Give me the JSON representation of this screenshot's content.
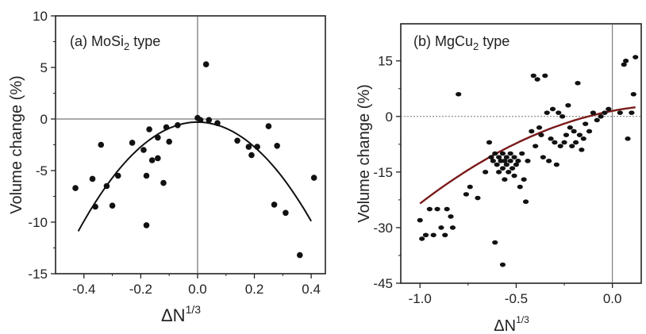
{
  "chart_data": [
    {
      "type": "scatter",
      "panel_label": "(a) MoSi",
      "panel_label_sub": "2",
      "panel_label_suffix": " type",
      "xlabel": "ΔN",
      "xlabel_sup": "1/3",
      "ylabel": "Volume change (%)",
      "xlim": [
        -0.5,
        0.45
      ],
      "ylim": [
        -15,
        10
      ],
      "xticks": [
        -0.4,
        -0.2,
        0.0,
        0.2,
        0.4
      ],
      "xtick_labels": [
        "-0.4",
        "-0.2",
        "0.0",
        "0.2",
        "0.4"
      ],
      "yticks": [
        -15,
        -10,
        -5,
        0,
        5,
        10
      ],
      "ytick_labels": [
        "-15",
        "-10",
        "-5",
        "0",
        "5",
        "10"
      ],
      "points": [
        {
          "x": -0.43,
          "y": -6.7
        },
        {
          "x": -0.37,
          "y": -5.8
        },
        {
          "x": -0.36,
          "y": -8.5
        },
        {
          "x": -0.34,
          "y": -2.5
        },
        {
          "x": -0.32,
          "y": -6.5
        },
        {
          "x": -0.3,
          "y": -8.4
        },
        {
          "x": -0.28,
          "y": -5.5
        },
        {
          "x": -0.23,
          "y": -2.3
        },
        {
          "x": -0.19,
          "y": -3.0
        },
        {
          "x": -0.18,
          "y": -5.5
        },
        {
          "x": -0.18,
          "y": -10.3
        },
        {
          "x": -0.17,
          "y": -1.0
        },
        {
          "x": -0.16,
          "y": -4.0
        },
        {
          "x": -0.14,
          "y": -1.8
        },
        {
          "x": -0.14,
          "y": -3.8
        },
        {
          "x": -0.12,
          "y": -6.2
        },
        {
          "x": -0.11,
          "y": -0.8
        },
        {
          "x": -0.1,
          "y": -2.2
        },
        {
          "x": -0.07,
          "y": -0.6
        },
        {
          "x": 0.0,
          "y": 0.1
        },
        {
          "x": 0.01,
          "y": -0.1
        },
        {
          "x": 0.03,
          "y": 5.3
        },
        {
          "x": 0.04,
          "y": -0.1
        },
        {
          "x": 0.07,
          "y": -0.4
        },
        {
          "x": 0.14,
          "y": -2.1
        },
        {
          "x": 0.18,
          "y": -2.7
        },
        {
          "x": 0.19,
          "y": -3.5
        },
        {
          "x": 0.21,
          "y": -2.7
        },
        {
          "x": 0.25,
          "y": -0.7
        },
        {
          "x": 0.27,
          "y": -8.3
        },
        {
          "x": 0.28,
          "y": -2.6
        },
        {
          "x": 0.31,
          "y": -9.1
        },
        {
          "x": 0.36,
          "y": -13.2
        },
        {
          "x": 0.41,
          "y": -5.7
        }
      ],
      "fit": {
        "type": "quadratic",
        "a": -60,
        "b": 0.0,
        "c": -0.3,
        "x_range": [
          -0.42,
          0.4
        ]
      },
      "fit_color": "#111111"
    },
    {
      "type": "scatter",
      "panel_label": "(b)  MgCu",
      "panel_label_sub": "2",
      "panel_label_suffix": " type",
      "xlabel": "ΔN",
      "xlabel_sup": "1/3",
      "ylabel": "Volume change (%)",
      "xlim": [
        -1.1,
        0.15
      ],
      "ylim": [
        -45,
        25
      ],
      "xticks": [
        -1.0,
        -0.5,
        0.0
      ],
      "xtick_labels": [
        "-1.0",
        "-0.5",
        "0.0"
      ],
      "yticks": [
        -45,
        -30,
        -15,
        0,
        15
      ],
      "ytick_labels": [
        "-45",
        "-30",
        "-15",
        "0",
        "15"
      ],
      "points": [
        {
          "x": -1.0,
          "y": -28
        },
        {
          "x": -0.99,
          "y": -33
        },
        {
          "x": -0.97,
          "y": -32
        },
        {
          "x": -0.95,
          "y": -25
        },
        {
          "x": -0.93,
          "y": -32
        },
        {
          "x": -0.91,
          "y": -25
        },
        {
          "x": -0.89,
          "y": -30
        },
        {
          "x": -0.87,
          "y": -32
        },
        {
          "x": -0.86,
          "y": -25
        },
        {
          "x": -0.84,
          "y": -27
        },
        {
          "x": -0.83,
          "y": -30
        },
        {
          "x": -0.8,
          "y": 6
        },
        {
          "x": -0.76,
          "y": -21
        },
        {
          "x": -0.74,
          "y": -19
        },
        {
          "x": -0.7,
          "y": -22
        },
        {
          "x": -0.66,
          "y": -15
        },
        {
          "x": -0.64,
          "y": -7
        },
        {
          "x": -0.63,
          "y": -11
        },
        {
          "x": -0.62,
          "y": -12
        },
        {
          "x": -0.61,
          "y": -10
        },
        {
          "x": -0.6,
          "y": -13
        },
        {
          "x": -0.59,
          "y": -11
        },
        {
          "x": -0.59,
          "y": -15
        },
        {
          "x": -0.58,
          "y": -12
        },
        {
          "x": -0.57,
          "y": -10
        },
        {
          "x": -0.57,
          "y": -14
        },
        {
          "x": -0.56,
          "y": -12
        },
        {
          "x": -0.56,
          "y": -17
        },
        {
          "x": -0.55,
          "y": -11
        },
        {
          "x": -0.55,
          "y": -13
        },
        {
          "x": -0.54,
          "y": -15
        },
        {
          "x": -0.53,
          "y": -10
        },
        {
          "x": -0.53,
          "y": -12
        },
        {
          "x": -0.52,
          "y": -14
        },
        {
          "x": -0.51,
          "y": -11
        },
        {
          "x": -0.51,
          "y": -16
        },
        {
          "x": -0.5,
          "y": -13
        },
        {
          "x": -0.49,
          "y": -12
        },
        {
          "x": -0.48,
          "y": -19
        },
        {
          "x": -0.47,
          "y": -10
        },
        {
          "x": -0.46,
          "y": -17
        },
        {
          "x": -0.45,
          "y": -23
        },
        {
          "x": -0.61,
          "y": -34
        },
        {
          "x": -0.57,
          "y": -40
        },
        {
          "x": -0.44,
          "y": -12
        },
        {
          "x": -0.42,
          "y": -4
        },
        {
          "x": -0.41,
          "y": 11
        },
        {
          "x": -0.4,
          "y": -8
        },
        {
          "x": -0.39,
          "y": 10
        },
        {
          "x": -0.38,
          "y": -3
        },
        {
          "x": -0.37,
          "y": -5
        },
        {
          "x": -0.36,
          "y": -11
        },
        {
          "x": -0.35,
          "y": 11
        },
        {
          "x": -0.34,
          "y": 1
        },
        {
          "x": -0.33,
          "y": -12
        },
        {
          "x": -0.32,
          "y": -6
        },
        {
          "x": -0.31,
          "y": 2
        },
        {
          "x": -0.3,
          "y": -7
        },
        {
          "x": -0.29,
          "y": -13
        },
        {
          "x": -0.28,
          "y": 1
        },
        {
          "x": -0.27,
          "y": -8
        },
        {
          "x": -0.26,
          "y": 0
        },
        {
          "x": -0.25,
          "y": -7
        },
        {
          "x": -0.24,
          "y": -5
        },
        {
          "x": -0.23,
          "y": 3
        },
        {
          "x": -0.22,
          "y": -3
        },
        {
          "x": -0.21,
          "y": -8
        },
        {
          "x": -0.2,
          "y": -4
        },
        {
          "x": -0.19,
          "y": -7
        },
        {
          "x": -0.18,
          "y": 9
        },
        {
          "x": -0.17,
          "y": -5
        },
        {
          "x": -0.16,
          "y": -9
        },
        {
          "x": -0.15,
          "y": -6
        },
        {
          "x": -0.14,
          "y": -2
        },
        {
          "x": -0.12,
          "y": -4
        },
        {
          "x": -0.1,
          "y": 1
        },
        {
          "x": -0.08,
          "y": -1
        },
        {
          "x": -0.06,
          "y": 0
        },
        {
          "x": -0.04,
          "y": 1
        },
        {
          "x": -0.02,
          "y": 2
        },
        {
          "x": 0.04,
          "y": 1
        },
        {
          "x": 0.06,
          "y": 14
        },
        {
          "x": 0.07,
          "y": 15
        },
        {
          "x": 0.08,
          "y": -6
        },
        {
          "x": 0.1,
          "y": 1
        },
        {
          "x": 0.11,
          "y": 6
        },
        {
          "x": 0.12,
          "y": 16
        }
      ],
      "fit": {
        "type": "quadratic",
        "a": -15,
        "b": 10,
        "c": 1.5,
        "x_range": [
          -1.0,
          0.12
        ]
      },
      "fit_color": "#7a1a1a"
    }
  ]
}
